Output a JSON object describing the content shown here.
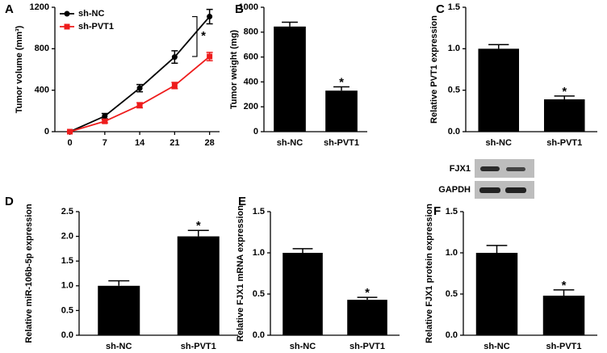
{
  "chart_data": [
    {
      "type": "line",
      "panel": "A",
      "ylabel": "Tumor volume (mm³)",
      "x": [
        0,
        7,
        14,
        21,
        28
      ],
      "xlim": [
        -3,
        30
      ],
      "xticks": [
        0,
        7,
        14,
        21,
        28
      ],
      "ylim": [
        0,
        1200
      ],
      "yticks": [
        0,
        400,
        800,
        1200
      ],
      "legend": "top-left",
      "annotation": "*",
      "series": [
        {
          "name": "sh-NC",
          "color": "#000000",
          "marker": "circle",
          "values": [
            0,
            150,
            420,
            720,
            1110
          ],
          "errors": [
            0,
            25,
            35,
            60,
            70
          ]
        },
        {
          "name": "sh-PVT1",
          "color": "#ee1c1c",
          "marker": "square",
          "values": [
            0,
            100,
            255,
            445,
            725
          ],
          "errors": [
            0,
            15,
            25,
            30,
            40
          ]
        }
      ]
    },
    {
      "type": "bar",
      "panel": "B",
      "ylabel": "Tumor weight (mg)",
      "categories": [
        "sh-NC",
        "sh-PVT1"
      ],
      "values": [
        845,
        330
      ],
      "errors": [
        35,
        30
      ],
      "color": "#000000",
      "annotation": "*",
      "ylim": [
        0,
        1000
      ],
      "yticks": [
        0,
        200,
        400,
        600,
        800,
        1000
      ]
    },
    {
      "type": "bar",
      "panel": "C",
      "ylabel": "Relative PVT1 expression",
      "categories": [
        "sh-NC",
        "sh-PVT1"
      ],
      "values": [
        1.0,
        0.39
      ],
      "errors": [
        0.05,
        0.04
      ],
      "color": "#000000",
      "annotation": "*",
      "ylim": [
        0,
        1.5
      ],
      "yticks": [
        {
          "value": 0,
          "label": "0.0"
        },
        0.5,
        {
          "value": 1,
          "label": "1.0"
        },
        1.5
      ]
    },
    {
      "type": "bar",
      "panel": "D",
      "ylabel": "Relative miR-106b-5p expression",
      "categories": [
        "sh-NC",
        "sh-PVT1"
      ],
      "values": [
        1.0,
        2.0
      ],
      "errors": [
        0.1,
        0.12
      ],
      "color": "#000000",
      "annotation": "*",
      "ylim": [
        0,
        2.5
      ],
      "yticks": [
        {
          "value": 0,
          "label": "0.0"
        },
        0.5,
        {
          "value": 1,
          "label": "1.0"
        },
        1.5,
        {
          "value": 2,
          "label": "2.0"
        },
        2.5
      ]
    },
    {
      "type": "bar",
      "panel": "E",
      "ylabel": "Relative FJX1 mRNA expression",
      "categories": [
        "sh-NC",
        "sh-PVT1"
      ],
      "values": [
        1.0,
        0.43
      ],
      "errors": [
        0.05,
        0.03
      ],
      "color": "#000000",
      "annotation": "*",
      "ylim": [
        0,
        1.5
      ],
      "yticks": [
        {
          "value": 0,
          "label": "0.0"
        },
        0.5,
        {
          "value": 1,
          "label": "1.0"
        },
        1.5
      ]
    },
    {
      "type": "bar",
      "panel": "F",
      "ylabel": "Relative FJX1 protein expression",
      "categories": [
        "sh-NC",
        "sh-PVT1"
      ],
      "values": [
        1.0,
        0.48
      ],
      "errors": [
        0.09,
        0.07
      ],
      "color": "#000000",
      "annotation": "*",
      "blot_labels": [
        "FJX1",
        "GAPDH"
      ],
      "ylim": [
        0,
        1.5
      ],
      "yticks": [
        {
          "value": 0,
          "label": "0.0"
        },
        0.5,
        {
          "value": 1,
          "label": "1.0"
        },
        1.5
      ]
    }
  ]
}
